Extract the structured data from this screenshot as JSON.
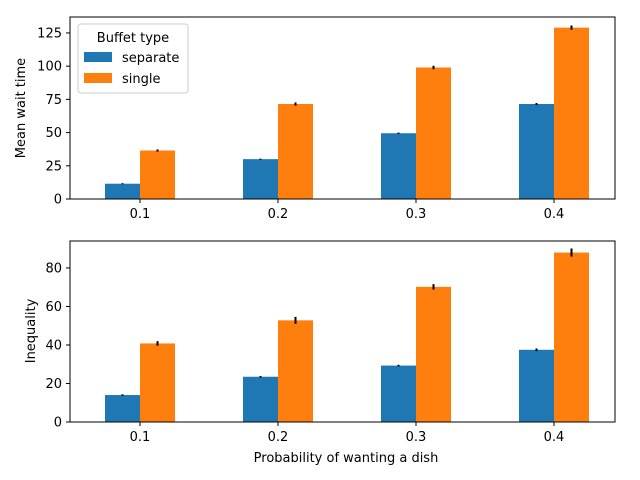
{
  "chart_data": [
    {
      "type": "bar",
      "categories": [
        "0.1",
        "0.2",
        "0.3",
        "0.4"
      ],
      "series": [
        {
          "name": "separate",
          "values": [
            11.5,
            30,
            49.5,
            71.5
          ],
          "errors": [
            0.4,
            0.4,
            0.5,
            0.8
          ],
          "color": "#1f77b4"
        },
        {
          "name": "single",
          "values": [
            36.5,
            71.5,
            99,
            129
          ],
          "errors": [
            0.8,
            1.2,
            1.3,
            1.6
          ],
          "color": "#ff7f0e"
        }
      ],
      "ylabel": "Mean wait time",
      "xlabel": "",
      "ylim": [
        0,
        137
      ],
      "yticks": [
        0,
        25,
        50,
        75,
        100,
        125
      ],
      "ytick_labels": [
        "0",
        "25",
        "50",
        "75",
        "100",
        "125"
      ],
      "legend": {
        "title": "Buffet type",
        "placement": "top-left"
      },
      "grid": false
    },
    {
      "type": "bar",
      "categories": [
        "0.1",
        "0.2",
        "0.3",
        "0.4"
      ],
      "series": [
        {
          "name": "separate",
          "values": [
            14,
            23.5,
            29.3,
            37.5
          ],
          "errors": [
            0.4,
            0.4,
            0.4,
            0.7
          ],
          "color": "#1f77b4"
        },
        {
          "name": "single",
          "values": [
            40.8,
            52.8,
            70.2,
            88
          ],
          "errors": [
            1.2,
            1.8,
            1.4,
            2.1
          ],
          "color": "#ff7f0e"
        }
      ],
      "ylabel": "Inequality",
      "xlabel": "Probability of wanting a dish",
      "ylim": [
        0,
        94
      ],
      "yticks": [
        0,
        20,
        40,
        60,
        80
      ],
      "ytick_labels": [
        "0",
        "20",
        "40",
        "60",
        "80"
      ],
      "grid": false
    }
  ]
}
